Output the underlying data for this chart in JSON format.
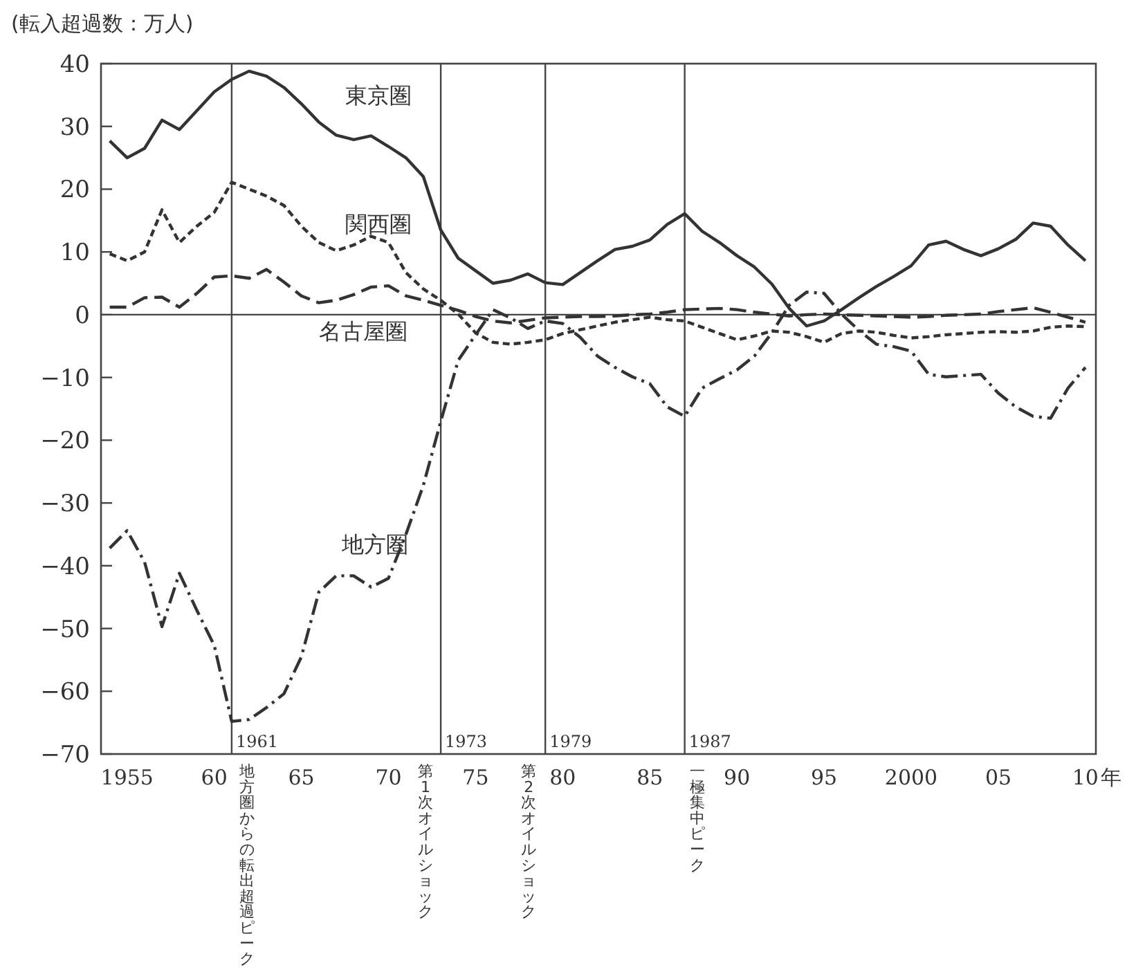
{
  "chart_data": {
    "type": "line",
    "ylabel": "(転入超過数：万人)",
    "x": [
      1954,
      1955,
      1956,
      1957,
      1958,
      1959,
      1960,
      1961,
      1962,
      1963,
      1964,
      1965,
      1966,
      1967,
      1968,
      1969,
      1970,
      1971,
      1972,
      1973,
      1974,
      1975,
      1976,
      1977,
      1978,
      1979,
      1980,
      1981,
      1982,
      1983,
      1984,
      1985,
      1986,
      1987,
      1988,
      1989,
      1990,
      1991,
      1992,
      1993,
      1994,
      1995,
      1996,
      1997,
      1998,
      1999,
      2000,
      2001,
      2002,
      2003,
      2004,
      2005,
      2006,
      2007,
      2008,
      2009,
      2010
    ],
    "series": [
      {
        "name": "東京圏",
        "color": "#333333",
        "line_style": "solid",
        "values": [
          27.7,
          25,
          26.5,
          31,
          29.5,
          32.5,
          35.5,
          37.5,
          38.8,
          38,
          36.2,
          33.6,
          30.7,
          28.6,
          27.9,
          28.5,
          26.8,
          25,
          22,
          13.5,
          9,
          7,
          5,
          5.5,
          6.5,
          5.1,
          4.8,
          6.7,
          8.6,
          10.4,
          10.9,
          11.9,
          14.4,
          16.1,
          13.3,
          11.5,
          9.4,
          7.6,
          4.9,
          1,
          -1.8,
          -1,
          0.8,
          2.7,
          4.5,
          6.1,
          7.8,
          11.1,
          11.7,
          10.4,
          9.4,
          10.5,
          12,
          14.6,
          14.1,
          11.1,
          8.6
        ]
      },
      {
        "name": "関西圏",
        "color": "#333333",
        "line_style": "dotted",
        "values": [
          9.7,
          8.6,
          10,
          16.7,
          11.5,
          14.1,
          16.3,
          21.1,
          20,
          18.9,
          17.4,
          14.1,
          11.5,
          10.2,
          11.1,
          12.5,
          11.5,
          6.7,
          4.1,
          2.3,
          0.1,
          -2.9,
          -4.4,
          -4.7,
          -4.4,
          -4,
          -3,
          -2.4,
          -1.8,
          -1.2,
          -0.8,
          -0.4,
          -0.8,
          -1,
          -2,
          -3,
          -4,
          -3.4,
          -2.6,
          -2.8,
          -3.5,
          -4.4,
          -3,
          -2.6,
          -2.8,
          -3.3,
          -3.7,
          -3.5,
          -3.2,
          -3,
          -2.8,
          -2.7,
          -2.8,
          -2.6,
          -2,
          -1.8,
          -1.9
        ]
      },
      {
        "name": "名古屋圏",
        "color": "#333333",
        "line_style": "dashed",
        "values": [
          1.2,
          1.2,
          2.7,
          2.8,
          1.2,
          3.4,
          6,
          6.2,
          5.8,
          7.2,
          5.2,
          3,
          1.9,
          2.3,
          3.2,
          4.4,
          4.6,
          3,
          2.3,
          1.5,
          0.7,
          -0.3,
          -1,
          -1.3,
          -0.9,
          -0.5,
          -0.4,
          -0.3,
          -0.3,
          -0.2,
          0,
          0.1,
          0.4,
          0.8,
          0.9,
          1,
          0.8,
          0.4,
          0.1,
          -0.2,
          0,
          0.1,
          0,
          -0.1,
          -0.2,
          -0.3,
          -0.4,
          -0.3,
          -0.1,
          0,
          0.1,
          0.5,
          0.8,
          1.1,
          0.4,
          -0.4,
          -1.2
        ]
      },
      {
        "name": "地方圏",
        "color": "#333333",
        "line_style": "dashdot",
        "values": [
          -37.2,
          -34.4,
          -39.4,
          -49.7,
          -41.2,
          -47.1,
          -52.7,
          -64.8,
          -64.5,
          -62.6,
          -60.4,
          -54.5,
          -44.2,
          -41.6,
          -41.6,
          -43.4,
          -42,
          -35,
          -27.2,
          -17,
          -7.3,
          -3.2,
          0.8,
          -0.5,
          -2.2,
          -1,
          -1.4,
          -3.6,
          -6.6,
          -8.4,
          -9.9,
          -11,
          -14.7,
          -16.2,
          -11.7,
          -10.2,
          -8.8,
          -6.6,
          -2.9,
          1.5,
          3.6,
          3.4,
          0.1,
          -2.5,
          -4.7,
          -5.1,
          -5.8,
          -9.5,
          -9.9,
          -9.7,
          -9.5,
          -12.5,
          -14.7,
          -16.2,
          -16.5,
          -11.7,
          -8.4
        ]
      }
    ],
    "xlim": [
      1953.5,
      2010.6
    ],
    "ylim": [
      -70,
      40
    ],
    "xticks": [
      {
        "value": 1955,
        "label": "1955"
      },
      {
        "value": 1960,
        "label": "60"
      },
      {
        "value": 1965,
        "label": "65"
      },
      {
        "value": 1970,
        "label": "70"
      },
      {
        "value": 1975,
        "label": "75"
      },
      {
        "value": 1980,
        "label": "80"
      },
      {
        "value": 1985,
        "label": "85"
      },
      {
        "value": 1990,
        "label": "90"
      },
      {
        "value": 1995,
        "label": "95"
      },
      {
        "value": 2000,
        "label": "2000"
      },
      {
        "value": 2005,
        "label": "05"
      },
      {
        "value": 2010,
        "label": "10"
      }
    ],
    "xlabel": "年",
    "yticks": [
      {
        "value": 40,
        "label": "40"
      },
      {
        "value": 30,
        "label": "30"
      },
      {
        "value": 20,
        "label": "20"
      },
      {
        "value": 10,
        "label": "10"
      },
      {
        "value": 0,
        "label": "0"
      },
      {
        "value": -10,
        "label": "−10"
      },
      {
        "value": -20,
        "label": "−20"
      },
      {
        "value": -30,
        "label": "−30"
      },
      {
        "value": -40,
        "label": "−40"
      },
      {
        "value": -50,
        "label": "−50"
      },
      {
        "value": -60,
        "label": "−60"
      },
      {
        "value": -70,
        "label": "−70"
      }
    ],
    "ref_lines": [
      {
        "axis": "x",
        "value": 1961,
        "label": "1961"
      },
      {
        "axis": "x",
        "value": 1973,
        "label": "1973"
      },
      {
        "axis": "x",
        "value": 1979,
        "label": "1979"
      },
      {
        "axis": "x",
        "value": 1987,
        "label": "1987"
      },
      {
        "axis": "y",
        "value": 0
      }
    ],
    "annotations": [
      "地方圏からの転出超過ピーク",
      "第1次オイルショック",
      "第2次オイルショック",
      "一極集中ピーク"
    ]
  }
}
